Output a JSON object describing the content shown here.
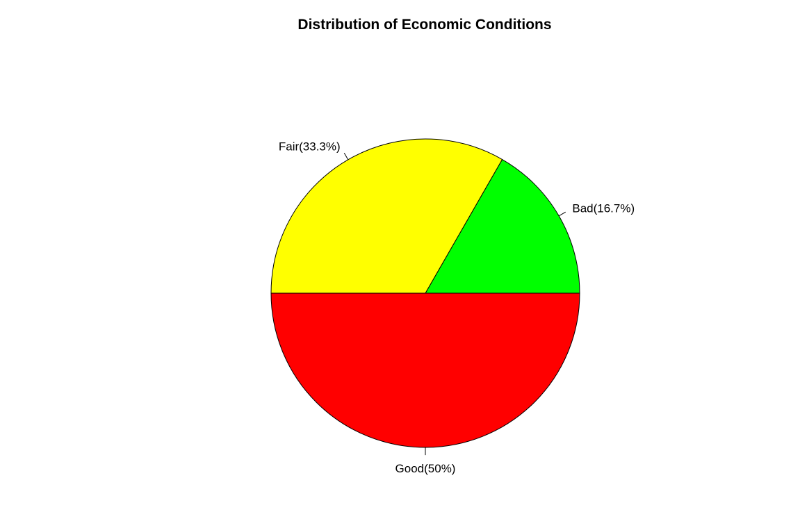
{
  "chart_data": {
    "type": "pie",
    "title": "Distribution of Economic Conditions",
    "slices": [
      {
        "category": "Bad",
        "percent": 16.7,
        "label": "Bad(16.7%)",
        "color": "#00FF00"
      },
      {
        "category": "Fair",
        "percent": 33.3,
        "label": "Fair(33.3%)",
        "color": "#FFFF00"
      },
      {
        "category": "Good",
        "percent": 50,
        "label": "Good(50%)",
        "color": "#FF0000"
      }
    ],
    "start_angle_deg": 0,
    "direction": "counterclockwise",
    "legend": "none"
  }
}
